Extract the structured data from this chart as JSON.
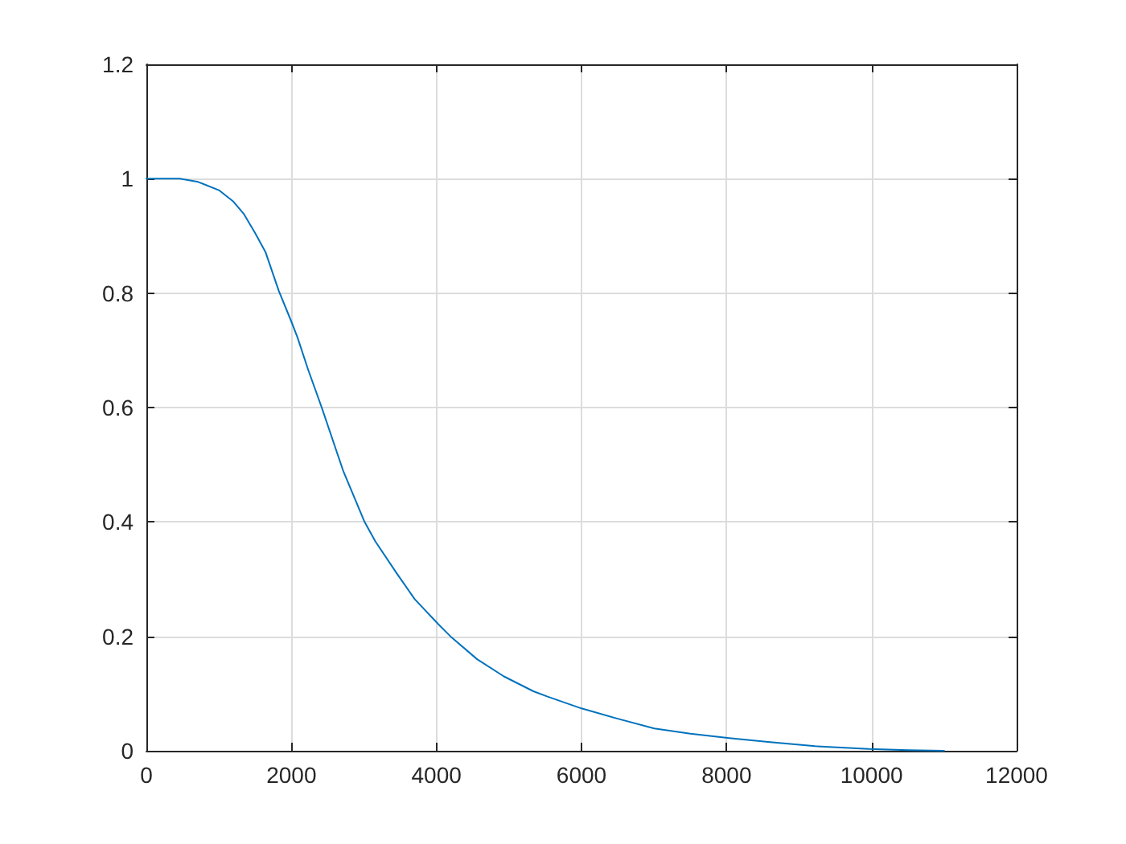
{
  "chart_data": {
    "type": "line",
    "x": [
      0,
      300,
      460,
      700,
      1000,
      1200,
      1346,
      1500,
      1642,
      1826,
      2000,
      2085,
      2231,
      2418,
      2712,
      3009,
      3157,
      3453,
      3700,
      4028,
      4193,
      4561,
      4930,
      5337,
      5524,
      6000,
      6500,
      7003,
      7500,
      8037,
      8600,
      9221,
      9960,
      10500,
      11000
    ],
    "values": [
      1,
      1,
      1,
      0.995,
      0.98,
      0.96,
      0.938,
      0.905,
      0.872,
      0.804,
      0.75,
      0.722,
      0.666,
      0.6,
      0.49,
      0.4,
      0.366,
      0.31,
      0.265,
      0.221,
      0.2,
      0.16,
      0.13,
      0.104,
      0.095,
      0.074,
      0.056,
      0.039,
      0.03,
      0.022,
      0.015,
      0.008,
      0.003,
      0.001,
      0
    ],
    "color": "#0072bd",
    "xlim": [
      0,
      12000
    ],
    "xticks": [
      0,
      2000,
      4000,
      6000,
      8000,
      10000,
      12000
    ],
    "ylim": [
      0,
      1.2
    ],
    "yticks": [
      0,
      0.2,
      0.4,
      0.6,
      0.8,
      1,
      1.2
    ],
    "grid": true,
    "marker": "none",
    "line_style": "solid"
  }
}
